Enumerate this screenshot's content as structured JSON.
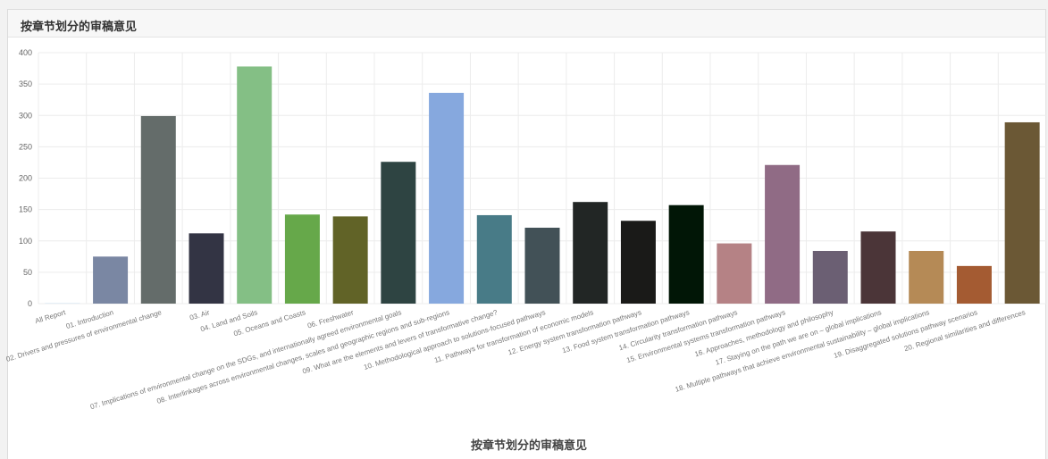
{
  "panel": {
    "title": "按章节划分的审稿意见"
  },
  "chart_data": {
    "type": "bar",
    "title": "按章节划分的审稿意见",
    "xlabel": "",
    "ylabel": "",
    "ylim": [
      0,
      400
    ],
    "yticks": [
      0,
      50,
      100,
      150,
      200,
      250,
      300,
      350,
      400
    ],
    "grid": true,
    "categories": [
      "All Report",
      "01. Introduction",
      "02. Drivers and pressures of environmental change",
      "03. Air",
      "04. Land and Soils",
      "05. Oceans and Coasts",
      "06. Freshwater",
      "07. Implications of environmental change on the SDGs, and internationally agreed environmental goals",
      "08. Interlinkages across environmental changes, scales and geographic regions and sub-regions",
      "09. What are the elements and levers of transformative change?",
      "10. Methodological approach to solutions-focused pathways",
      "11. Pathways for transformation of economic models",
      "12. Energy system transformation pathways",
      "13. Food system transformation pathways",
      "14. Circularity transformation pathways",
      "15. Environmental systems transformation pathways",
      "16. Approaches, methodology and philosophy",
      "17. Staying on the path we are on – global implications",
      "18. Multiple pathways that achieve environmental sustainability – global implications",
      "19. Disaggregated solutions pathway scenarios",
      "20. Regional similarities and differences"
    ],
    "values": [
      1,
      75,
      299,
      112,
      378,
      142,
      139,
      226,
      336,
      141,
      121,
      162,
      132,
      157,
      96,
      221,
      84,
      115,
      84,
      60,
      289
    ],
    "colors": [
      "#d9e6f2",
      "#7a87a3",
      "#646c6a",
      "#333444",
      "#84bf85",
      "#66a84a",
      "#616327",
      "#2e4442",
      "#86a8de",
      "#487b87",
      "#425157",
      "#222625",
      "#1a1a18",
      "#011606",
      "#b58285",
      "#906b85",
      "#6b5f73",
      "#4b3538",
      "#b58a56",
      "#a45b32",
      "#6b5835"
    ]
  }
}
